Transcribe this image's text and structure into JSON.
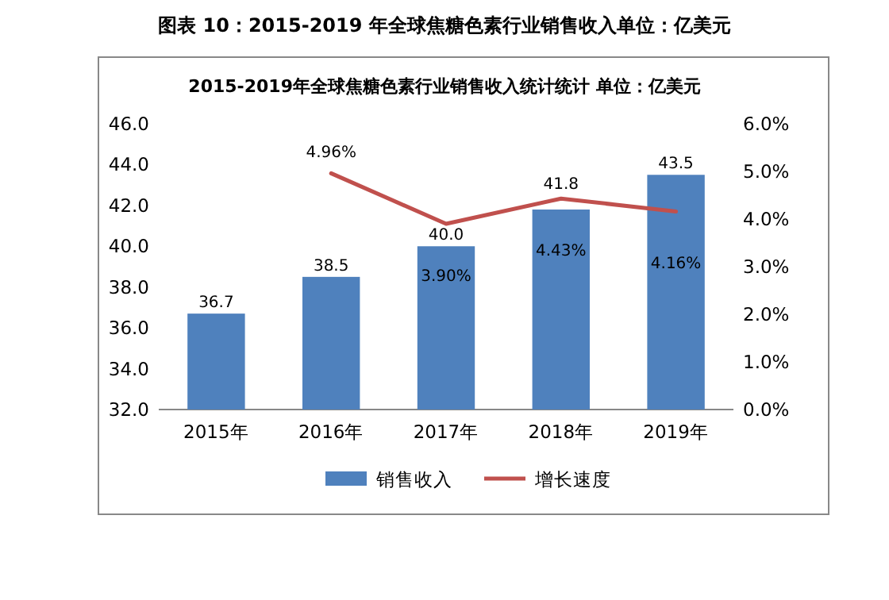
{
  "chart_data": {
    "type": "bar",
    "title": "图表 10：2015-2019 年全球焦糖色素行业销售收入单位：亿美元",
    "subtitle": "2015-2019年全球焦糖色素行业销售收入统计统计 单位：亿美元",
    "categories": [
      "2015年",
      "2016年",
      "2017年",
      "2018年",
      "2019年"
    ],
    "series": [
      {
        "name": "销售收入",
        "color": "#4f81bd",
        "values": [
          36.7,
          38.5,
          40.0,
          41.8,
          43.5
        ],
        "value_labels": [
          "36.7",
          "38.5",
          "40.0",
          "41.8",
          "43.5"
        ]
      },
      {
        "name": "增长速度",
        "type": "line",
        "axis": "y2",
        "color": "#c0504d",
        "values": [
          null,
          4.96,
          3.9,
          4.43,
          4.16
        ],
        "value_labels": [
          null,
          "4.96%",
          "3.90%",
          "4.43%",
          "4.16%"
        ]
      }
    ],
    "ylim": [
      32,
      46
    ],
    "yticks": [
      {
        "value": 32,
        "label": "32.0"
      },
      {
        "value": 34,
        "label": "34.0"
      },
      {
        "value": 36,
        "label": "36.0"
      },
      {
        "value": 38,
        "label": "38.0"
      },
      {
        "value": 40,
        "label": "40.0"
      },
      {
        "value": 42,
        "label": "42.0"
      },
      {
        "value": 44,
        "label": "44.0"
      },
      {
        "value": 46,
        "label": "46.0"
      }
    ],
    "y2lim": [
      0,
      6
    ],
    "y2ticks": [
      {
        "value": 0,
        "label": "0.0%"
      },
      {
        "value": 1,
        "label": "1.0%"
      },
      {
        "value": 2,
        "label": "2.0%"
      },
      {
        "value": 3,
        "label": "3.0%"
      },
      {
        "value": 4,
        "label": "4.0%"
      },
      {
        "value": 5,
        "label": "5.0%"
      },
      {
        "value": 6,
        "label": "6.0%"
      }
    ],
    "legend": "bottom",
    "grid": false,
    "marker": "none",
    "line_style": "solid"
  }
}
